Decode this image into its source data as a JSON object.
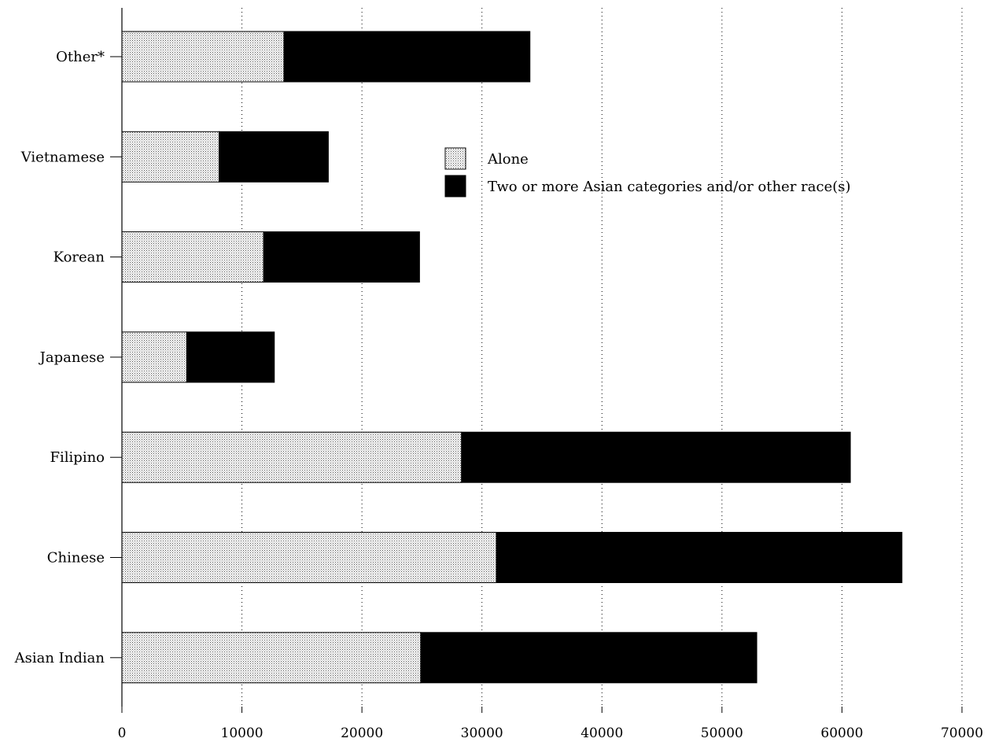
{
  "chart_data": {
    "type": "bar",
    "orientation": "horizontal",
    "stacked": true,
    "title": "",
    "xlabel": "",
    "ylabel": "",
    "categories": [
      "Other*",
      "Vietnamese",
      "Korean",
      "Japanese",
      "Filipino",
      "Chinese",
      "Asian Indian"
    ],
    "series": [
      {
        "name": "Alone",
        "values": [
          13500,
          8100,
          11800,
          5400,
          28300,
          31200,
          24900
        ],
        "color": "#d9d9d9",
        "pattern": "stippled"
      },
      {
        "name": "Two or more Asian categories and/or other race(s)",
        "values": [
          20500,
          9100,
          13000,
          7300,
          32400,
          33800,
          28000
        ],
        "color": "#000000",
        "pattern": "solid"
      }
    ],
    "xlim": [
      0,
      70000
    ],
    "xticks": [
      "0",
      "10000",
      "20000",
      "30000",
      "40000",
      "50000",
      "60000",
      "70000"
    ],
    "grid": "vertical dotted",
    "legend_position": "upper-middle"
  }
}
